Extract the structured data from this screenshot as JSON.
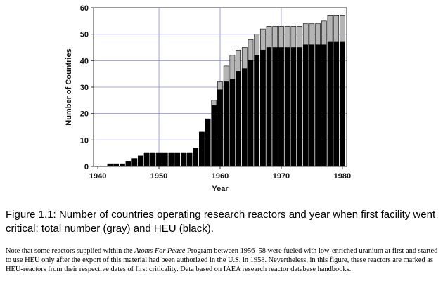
{
  "chart_data": {
    "type": "bar",
    "stacked_overlay": true,
    "x": [
      1940,
      1941,
      1942,
      1943,
      1944,
      1945,
      1946,
      1947,
      1948,
      1949,
      1950,
      1951,
      1952,
      1953,
      1954,
      1955,
      1956,
      1957,
      1958,
      1959,
      1960,
      1961,
      1962,
      1963,
      1964,
      1965,
      1966,
      1967,
      1968,
      1969,
      1970,
      1971,
      1972,
      1973,
      1974,
      1975,
      1976,
      1977,
      1978,
      1979,
      1980
    ],
    "series": [
      {
        "name": "total number",
        "color": "#b4b4b4",
        "values": [
          0,
          0,
          1,
          1,
          1,
          2,
          3,
          4,
          5,
          5,
          5,
          5,
          5,
          5,
          5,
          5,
          7,
          13,
          18,
          25,
          32,
          38,
          42,
          44,
          45,
          48,
          50,
          52,
          53,
          53,
          53,
          53,
          53,
          53,
          54,
          54,
          54,
          55,
          57,
          57,
          57
        ]
      },
      {
        "name": "HEU",
        "color": "#000000",
        "values": [
          0,
          0,
          1,
          1,
          1,
          2,
          3,
          4,
          5,
          5,
          5,
          5,
          5,
          5,
          5,
          5,
          7,
          13,
          18,
          23,
          29,
          32,
          33,
          36,
          37,
          40,
          42,
          44,
          45,
          45,
          45,
          45,
          45,
          45,
          46,
          46,
          46,
          46,
          47,
          47,
          47
        ]
      }
    ],
    "xlabel": "Year",
    "ylabel": "Number of Countries",
    "xticks": [
      1940,
      1950,
      1960,
      1970,
      1980
    ],
    "yticks": [
      0,
      10,
      20,
      30,
      40,
      50,
      60
    ],
    "xlim": [
      1939.3,
      1980.7
    ],
    "ylim": [
      0,
      60
    ],
    "grid": true
  },
  "caption": {
    "text": "Figure 1.1: Number of countries operating research reactors and year when first facility went critical: total number (gray) and HEU (black)."
  },
  "note": {
    "part1": "Note that some reactors supplied within the ",
    "italic": "Atoms For Peace",
    "part2": " Program between 1956–58 were fueled with low-enriched uranium at first and started to use HEU only after the export of this material had been authorized in the U.S. in 1958. Nevertheless, in this figure, these reactors are marked as HEU-reactors from their respective dates of first criticality. Data based on IAEA research reactor database handbooks."
  }
}
